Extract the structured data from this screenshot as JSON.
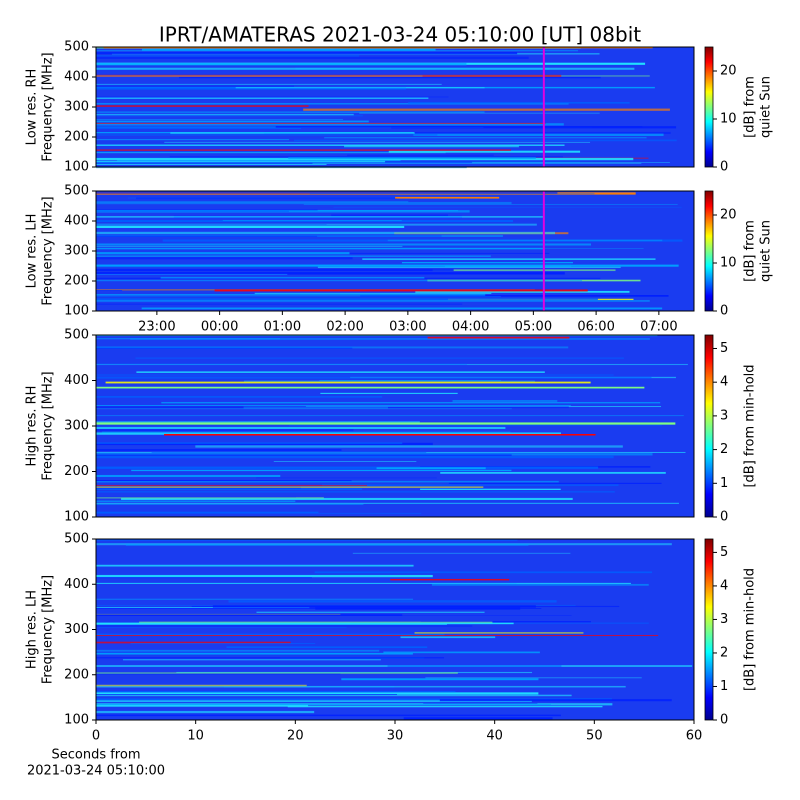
{
  "title": "IPRT/AMATERAS 2021-03-24 05:10:00 [UT]   08bit",
  "chart_data": [
    {
      "type": "heatmap",
      "colormap": "jet",
      "ylabel": [
        "Low res. RH",
        "Frequency [MHz]"
      ],
      "ylim": [
        100,
        500
      ],
      "yticks": [
        100,
        200,
        300,
        400,
        500
      ],
      "xlim": [
        -1.97,
        7.56
      ],
      "marker": {
        "x": 5.167,
        "color": "#e000e0"
      },
      "colorbar": {
        "label": [
          "[dB] from",
          "quiet Sun"
        ],
        "lim": [
          0,
          25
        ],
        "ticks": [
          0,
          10,
          20
        ]
      }
    },
    {
      "type": "heatmap",
      "colormap": "jet",
      "ylabel": [
        "Low res. LH",
        "Frequency [MHz]"
      ],
      "ylim": [
        100,
        500
      ],
      "yticks": [
        100,
        200,
        300,
        400,
        500
      ],
      "xlim": [
        -1.97,
        7.56
      ],
      "xticks": [
        {
          "value": -1,
          "label": "23:00"
        },
        {
          "value": 0,
          "label": "00:00"
        },
        {
          "value": 1,
          "label": "01:00"
        },
        {
          "value": 2,
          "label": "02:00"
        },
        {
          "value": 3,
          "label": "03:00"
        },
        {
          "value": 4,
          "label": "04:00"
        },
        {
          "value": 5,
          "label": "05:00"
        },
        {
          "value": 6,
          "label": "06:00"
        },
        {
          "value": 7,
          "label": "07:00"
        }
      ],
      "marker": {
        "x": 5.167,
        "color": "#e000e0"
      },
      "colorbar": {
        "label": [
          "[dB] from",
          "quiet Sun"
        ],
        "lim": [
          0,
          25
        ],
        "ticks": [
          0,
          10,
          20
        ]
      }
    },
    {
      "type": "heatmap",
      "colormap": "jet",
      "ylabel": [
        "High res. RH",
        "Frequency [MHz]"
      ],
      "ylim": [
        100,
        500
      ],
      "yticks": [
        100,
        200,
        300,
        400,
        500
      ],
      "colorbar": {
        "label": [
          "[dB] from min-hold"
        ],
        "lim": [
          0,
          5.4
        ],
        "ticks": [
          0,
          1,
          2,
          3,
          4,
          5
        ]
      }
    },
    {
      "type": "heatmap",
      "colormap": "jet",
      "ylabel": [
        "High res. LH",
        "Frequency [MHz]"
      ],
      "ylim": [
        100,
        500
      ],
      "yticks": [
        100,
        200,
        300,
        400,
        500
      ],
      "xlim": [
        0,
        60
      ],
      "xticks": [
        0,
        10,
        20,
        30,
        40,
        50,
        60
      ],
      "xlabel": [
        "Seconds from",
        "2021-03-24 05:10:00"
      ],
      "colorbar": {
        "label": [
          "[dB] from min-hold"
        ],
        "lim": [
          0,
          5.4
        ],
        "ticks": [
          0,
          1,
          2,
          3,
          4,
          5
        ]
      }
    }
  ]
}
